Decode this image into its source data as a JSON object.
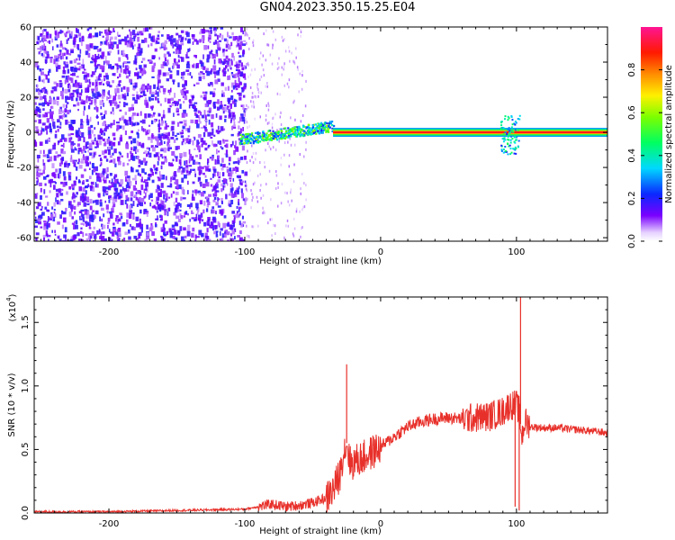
{
  "figure_title": "GN04.2023.350.15.25.E04",
  "colors": {
    "spectrogram_noise": "#7a00ff",
    "snr_line": "#e8302a",
    "frame": "#000000"
  },
  "chart_data": [
    {
      "type": "heatmap",
      "title": "",
      "xlabel": "Height of straight line (km)",
      "ylabel": "Frequency (Hz)",
      "xlim": [
        -255,
        167
      ],
      "ylim": [
        -62,
        60
      ],
      "x_ticks": [
        -200,
        -100,
        0,
        100
      ],
      "x_tick_labels": [
        "-200",
        "-100",
        "0",
        "100"
      ],
      "y_ticks": [
        -60,
        -40,
        -20,
        0,
        20,
        40,
        60
      ],
      "y_tick_labels": [
        "-60",
        "-40",
        "-20",
        "0",
        "20",
        "40",
        "60"
      ],
      "grid": false,
      "colorbar": {
        "label": "Normalized spectral amplitude",
        "range": [
          0,
          1
        ],
        "ticks": [
          0.0,
          0.2,
          0.4,
          0.6,
          0.8
        ],
        "tick_labels": [
          "0.0",
          "0.2",
          "0.4",
          "0.6",
          "0.8"
        ],
        "colormap": "rainbow (purple to magenta)"
      },
      "features": [
        {
          "name": "broadband noise",
          "x_range": [
            -255,
            -100
          ],
          "y_range": [
            -62,
            60
          ],
          "amplitude": 0.1
        },
        {
          "name": "sparse noise columns",
          "x_range": [
            -100,
            -55
          ],
          "y_range": [
            -62,
            60
          ],
          "amplitude": 0.05
        },
        {
          "name": "rising tone",
          "x_range": [
            -105,
            -35
          ],
          "y_range": [
            -7,
            6
          ],
          "amplitude": 0.5
        },
        {
          "name": "steady tone",
          "x_range": [
            -35,
            167
          ],
          "y_value": 0,
          "amplitude": 0.9
        },
        {
          "name": "burst near 100 km",
          "x_range": [
            88,
            102
          ],
          "y_range": [
            -12,
            10
          ],
          "amplitude": 0.5
        }
      ]
    },
    {
      "type": "line",
      "title": "",
      "xlabel": "Height of straight line (km)",
      "ylabel": "SNR (10 * v/v)",
      "y_multiplier_label": "(x10",
      "y_multiplier_exponent": "4",
      "y_multiplier_close": ")",
      "xlim": [
        -255,
        167
      ],
      "ylim": [
        0,
        1.7
      ],
      "x_ticks": [
        -200,
        -100,
        0,
        100
      ],
      "x_tick_labels": [
        "-200",
        "-100",
        "0",
        "100"
      ],
      "y_ticks": [
        0.0,
        0.5,
        1.0,
        1.5
      ],
      "y_tick_labels": [
        "0.0",
        "0.5",
        "1.0",
        "1.5"
      ],
      "grid": false,
      "series": [
        {
          "x": [
            -255,
            -200,
            -150,
            -100,
            -90,
            -80,
            -70,
            -60,
            -50,
            -40,
            -35,
            -30,
            -28,
            -25,
            -22,
            -20,
            -10,
            0,
            10,
            20,
            30,
            40,
            50,
            60,
            70,
            80,
            90,
            95,
            100,
            102,
            104,
            106,
            108,
            110,
            120,
            130,
            140,
            150,
            160,
            167
          ],
          "y": [
            0.01,
            0.01,
            0.02,
            0.03,
            0.05,
            0.07,
            0.05,
            0.06,
            0.08,
            0.12,
            0.18,
            0.3,
            0.45,
            0.55,
            0.38,
            0.4,
            0.45,
            0.52,
            0.6,
            0.68,
            0.72,
            0.74,
            0.75,
            0.74,
            0.75,
            0.76,
            0.8,
            0.85,
            0.85,
            0.8,
            0.6,
            0.72,
            0.7,
            0.68,
            0.67,
            0.67,
            0.66,
            0.65,
            0.64,
            0.63
          ]
        }
      ],
      "spikes": [
        {
          "x": -25,
          "y": 1.17
        },
        {
          "x": 103,
          "y": 1.7
        },
        {
          "x": 102,
          "y": 0.02
        },
        {
          "x": 99,
          "y": 0.05
        }
      ]
    }
  ]
}
